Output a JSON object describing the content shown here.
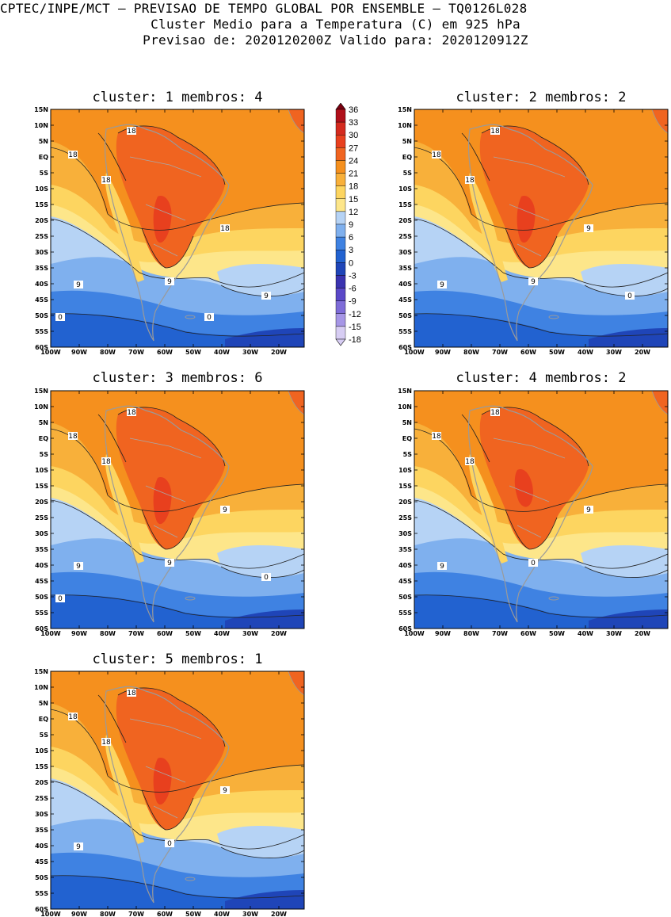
{
  "header": {
    "line1": "CPTEC/INPE/MCT – PREVISAO DE TEMPO GLOBAL POR ENSEMBLE – TQ0126L028",
    "line2": "Cluster Medio para a Temperatura (C) em 925 hPa",
    "line3": "Previsao de: 2020120200Z   Valido para: 2020120912Z"
  },
  "panels": [
    {
      "title": "cluster: 1   membros: 4",
      "labels": [
        "18",
        "18",
        "18",
        "18",
        "9",
        "9",
        "9",
        "0",
        "0"
      ]
    },
    {
      "title": "cluster: 2   membros: 2",
      "labels": [
        "18",
        "18",
        "18",
        "9",
        "9",
        "9",
        "0"
      ]
    },
    {
      "title": "cluster: 3   membros: 6",
      "labels": [
        "18",
        "18",
        "18",
        "9",
        "9",
        "9",
        "0",
        "0"
      ]
    },
    {
      "title": "cluster: 4   membros: 2",
      "labels": [
        "18",
        "18",
        "18",
        "9",
        "9",
        "0"
      ]
    },
    {
      "title": "cluster: 5   membros: 1",
      "labels": [
        "18",
        "18",
        "18",
        "9",
        "9",
        "0"
      ]
    }
  ],
  "axes": {
    "lat_labels": [
      "15N",
      "10N",
      "5N",
      "EQ",
      "5S",
      "10S",
      "15S",
      "20S",
      "25S",
      "30S",
      "35S",
      "40S",
      "45S",
      "50S",
      "55S",
      "60S"
    ],
    "lon_labels": [
      "100W",
      "90W",
      "80W",
      "70W",
      "60W",
      "50W",
      "40W",
      "30W",
      "20W"
    ]
  },
  "colorbar": {
    "levels": [
      "36",
      "33",
      "30",
      "27",
      "24",
      "21",
      "18",
      "15",
      "12",
      "9",
      "6",
      "3",
      "0",
      "-3",
      "-6",
      "-9",
      "-12",
      "-15",
      "-18"
    ],
    "colors": [
      "#7a0010",
      "#b0101a",
      "#d42a1e",
      "#e8401e",
      "#f06420",
      "#f5901e",
      "#f8b03a",
      "#fdd560",
      "#fde68a",
      "#b6d3f5",
      "#7fb0ee",
      "#3f82e2",
      "#2262d0",
      "#1f45b8",
      "#3a33b0",
      "#5a48c8",
      "#7e6cd8",
      "#a696e6",
      "#d7cdf3"
    ],
    "unit_note": ""
  }
}
